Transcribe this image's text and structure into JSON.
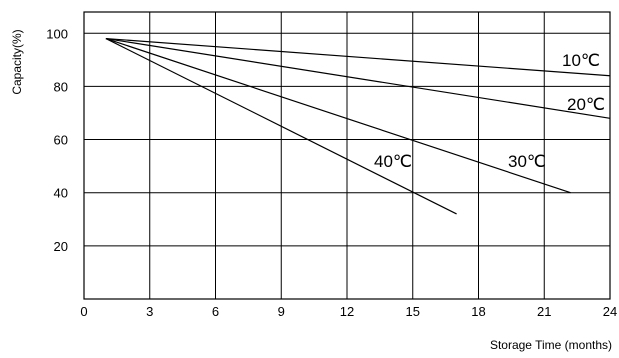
{
  "chart_data": {
    "type": "line",
    "title": "",
    "xlabel": "Storage Time (months)",
    "ylabel": "Capacity(%)",
    "xlim": [
      0,
      24
    ],
    "ylim": [
      0,
      108
    ],
    "x_ticks": [
      "0",
      "3",
      "6",
      "9",
      "12",
      "15",
      "18",
      "21",
      "24"
    ],
    "y_ticks": [
      "20",
      "40",
      "60",
      "80",
      "100"
    ],
    "grid": true,
    "legend": "none",
    "series": [
      {
        "name": "10℃",
        "x": [
          1,
          24
        ],
        "y": [
          98,
          84
        ]
      },
      {
        "name": "20℃",
        "x": [
          1,
          24
        ],
        "y": [
          98,
          68
        ]
      },
      {
        "name": "30℃",
        "x": [
          1,
          22.2
        ],
        "y": [
          98,
          40
        ]
      },
      {
        "name": "40℃",
        "x": [
          1,
          17
        ],
        "y": [
          98,
          32
        ]
      }
    ]
  }
}
